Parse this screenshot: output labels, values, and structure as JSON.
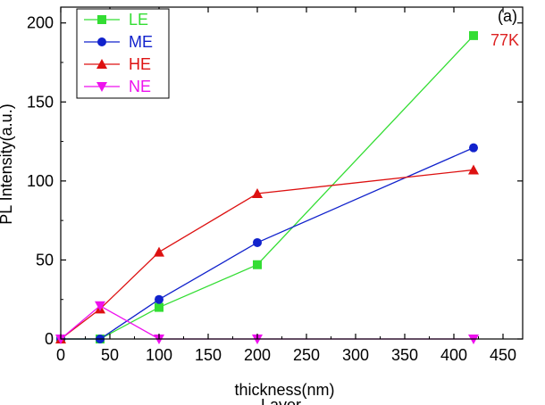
{
  "chart_data": {
    "type": "line",
    "title": "",
    "xlabel": "thickness(nm)",
    "xlabel_extra": "Layer",
    "ylabel": "PL Intensity(a.u.)",
    "xlim": [
      0,
      470
    ],
    "ylim": [
      0,
      210
    ],
    "xticks": [
      0,
      50,
      100,
      150,
      200,
      250,
      300,
      350,
      400,
      450
    ],
    "yticks": [
      0,
      50,
      100,
      150,
      200
    ],
    "grid": false,
    "legend_position": "top-left",
    "annotations": [
      {
        "text": "(a)",
        "color": "#000000",
        "position": "top-right"
      },
      {
        "text": "77K",
        "color": "#dd2222",
        "position": "top-right"
      }
    ],
    "series": [
      {
        "name": "LE",
        "color": "#33dd33",
        "marker": "square",
        "x": [
          0,
          40,
          100,
          200,
          420
        ],
        "y": [
          0,
          0,
          20,
          47,
          192
        ]
      },
      {
        "name": "ME",
        "color": "#1122cc",
        "marker": "circle",
        "x": [
          0,
          40,
          100,
          200,
          420
        ],
        "y": [
          0,
          0,
          25,
          61,
          121
        ]
      },
      {
        "name": "HE",
        "color": "#dd1111",
        "marker": "triangle-up",
        "x": [
          0,
          40,
          100,
          200,
          420
        ],
        "y": [
          0,
          19,
          55,
          92,
          107
        ]
      },
      {
        "name": "NE",
        "color": "#ee11ee",
        "marker": "triangle-down",
        "x": [
          0,
          40,
          100,
          200,
          420
        ],
        "y": [
          0,
          21,
          0,
          0,
          0
        ]
      }
    ]
  }
}
